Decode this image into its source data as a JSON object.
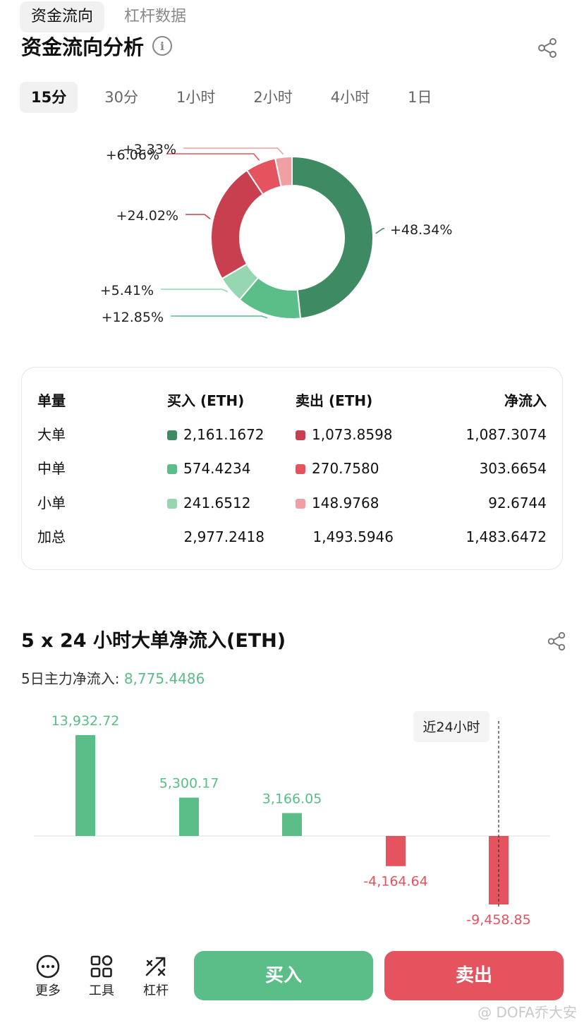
{
  "top_tabs": [
    {
      "label": "资金流向",
      "active": true
    },
    {
      "label": "杠杆数据",
      "active": false
    }
  ],
  "analysis": {
    "title": "资金流向分析",
    "info_icon": "i",
    "period_tabs": [
      {
        "label": "15分",
        "active": true
      },
      {
        "label": "30分",
        "active": false
      },
      {
        "label": "1小时",
        "active": false
      },
      {
        "label": "2小时",
        "active": false
      },
      {
        "label": "4小时",
        "active": false
      },
      {
        "label": "1日",
        "active": false
      }
    ]
  },
  "colors": {
    "green_dark": "#3e8b63",
    "green_mid": "#5bbd87",
    "green_light": "#96d6b1",
    "red_dark": "#c8404f",
    "red_mid": "#e5535f",
    "red_light": "#f0a0a4"
  },
  "chart_data": [
    {
      "type": "pie",
      "slices": [
        {
          "label": "+48.34%",
          "value": 48.34,
          "color": "#3e8b63"
        },
        {
          "label": "+12.85%",
          "value": 12.85,
          "color": "#5bbd87"
        },
        {
          "label": "+5.41%",
          "value": 5.41,
          "color": "#96d6b1"
        },
        {
          "label": "+24.02%",
          "value": 24.02,
          "color": "#c8404f"
        },
        {
          "label": "+6.06%",
          "value": 6.06,
          "color": "#e5535f"
        },
        {
          "label": "+3.33%",
          "value": 3.33,
          "color": "#f0a0a4"
        }
      ]
    },
    {
      "type": "bar",
      "categories": [
        "",
        "",
        "",
        "",
        ""
      ],
      "values": [
        13932.72,
        5300.17,
        3166.05,
        -4164.64,
        -9458.85
      ],
      "labels": [
        "13,932.72",
        "5,300.17",
        "3,166.05",
        "-4,164.64",
        "-9,458.85"
      ],
      "annotation": "近24小时",
      "title": "5 x 24 小时大单净流入(ETH)"
    }
  ],
  "table": {
    "headers": [
      "单量",
      "买入 (ETH)",
      "卖出 (ETH)",
      "净流入"
    ],
    "rows": [
      {
        "name": "大单",
        "buy": "2,161.1672",
        "sell": "1,073.8598",
        "net": "1,087.3074"
      },
      {
        "name": "中单",
        "buy": "574.4234",
        "sell": "270.7580",
        "net": "303.6654"
      },
      {
        "name": "小单",
        "buy": "241.6512",
        "sell": "148.9768",
        "net": "92.6744"
      }
    ],
    "total": {
      "name": "加总",
      "buy": "2,977.2418",
      "sell": "1,493.5946",
      "net": "1,483.6472"
    }
  },
  "bar_section": {
    "title": "5 x 24 小时大单净流入(ETH)",
    "subtitle_label": "5日主力净流入:",
    "subtitle_value": "8,775.4486"
  },
  "bottom": {
    "tools": [
      {
        "label": "更多",
        "icon": "more-icon"
      },
      {
        "label": "工具",
        "icon": "tools-icon"
      },
      {
        "label": "杠杆",
        "icon": "leverage-icon"
      }
    ],
    "buy_label": "买入",
    "sell_label": "卖出"
  },
  "watermark": "@ DOFA乔大安"
}
